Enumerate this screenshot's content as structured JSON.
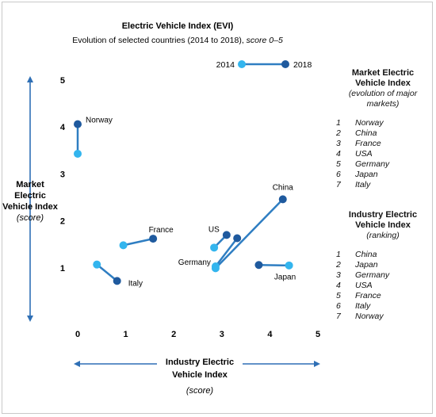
{
  "chart_data": {
    "type": "scatter",
    "title": "Electric Vehicle Index (EVI)",
    "subtitle_plain": "Evolution  of selected  countries (2014 to 2018), ",
    "subtitle_italic": "score 0–5",
    "xlabel_line1": "Industry Electric",
    "xlabel_line2": "Vehicle Index",
    "xlabel_line3": "(score)",
    "ylabel_line1": "Market",
    "ylabel_line2": "Electric",
    "ylabel_line3": "Vehicle Index",
    "ylabel_line4": "(score)",
    "xlim": [
      0,
      5
    ],
    "ylim": [
      0,
      5
    ],
    "xticks": [
      "0",
      "1",
      "2",
      "3",
      "4",
      "5"
    ],
    "yticks": [
      "0",
      "1",
      "2",
      "3",
      "4",
      "5"
    ],
    "grid": false,
    "legend_placement": "top-right",
    "legend": {
      "start_label": "2014",
      "end_label": "2018"
    },
    "colors": {
      "y2014": "#33b5ee",
      "y2018": "#1f5a9e",
      "line": "#2f7ec2"
    },
    "series": [
      {
        "country": "Norway",
        "x2014": 0.0,
        "y2014": 3.43,
        "x2018": 0.0,
        "y2018": 4.06
      },
      {
        "country": "China",
        "x2014": 2.87,
        "y2014": 0.99,
        "x2018": 4.27,
        "y2018": 2.46
      },
      {
        "country": "France",
        "x2014": 0.95,
        "y2014": 1.48,
        "x2018": 1.57,
        "y2018": 1.62
      },
      {
        "country": "US",
        "x2014": 2.84,
        "y2014": 1.43,
        "x2018": 3.1,
        "y2018": 1.7
      },
      {
        "country": "Germany",
        "x2014": 2.87,
        "y2014": 1.03,
        "x2018": 3.32,
        "y2018": 1.63
      },
      {
        "country": "Japan",
        "x2014": 4.4,
        "y2014": 1.05,
        "x2018": 3.77,
        "y2018": 1.06
      },
      {
        "country": "Italy",
        "x2014": 0.4,
        "y2014": 1.07,
        "x2018": 0.82,
        "y2018": 0.72
      }
    ]
  },
  "market_panel": {
    "title_line1": "Market Electric",
    "title_line2": "Vehicle Index",
    "paren_line1": "(evolution of major",
    "paren_line2": "markets)",
    "items": [
      {
        "rank": "1",
        "name": "Norway"
      },
      {
        "rank": "2",
        "name": "China"
      },
      {
        "rank": "3",
        "name": "France"
      },
      {
        "rank": "4",
        "name": "USA"
      },
      {
        "rank": "5",
        "name": "Germany"
      },
      {
        "rank": "6",
        "name": "Japan"
      },
      {
        "rank": "7",
        "name": "Italy"
      }
    ]
  },
  "industry_panel": {
    "title_line1": "Industry Electric",
    "title_line2": "Vehicle Index",
    "paren_line1": "(ranking)",
    "items": [
      {
        "rank": "1",
        "name": "China"
      },
      {
        "rank": "2",
        "name": "Japan"
      },
      {
        "rank": "3",
        "name": "Germany"
      },
      {
        "rank": "4",
        "name": "USA"
      },
      {
        "rank": "5",
        "name": "France"
      },
      {
        "rank": "6",
        "name": "Italy"
      },
      {
        "rank": "7",
        "name": "Norway"
      }
    ]
  }
}
